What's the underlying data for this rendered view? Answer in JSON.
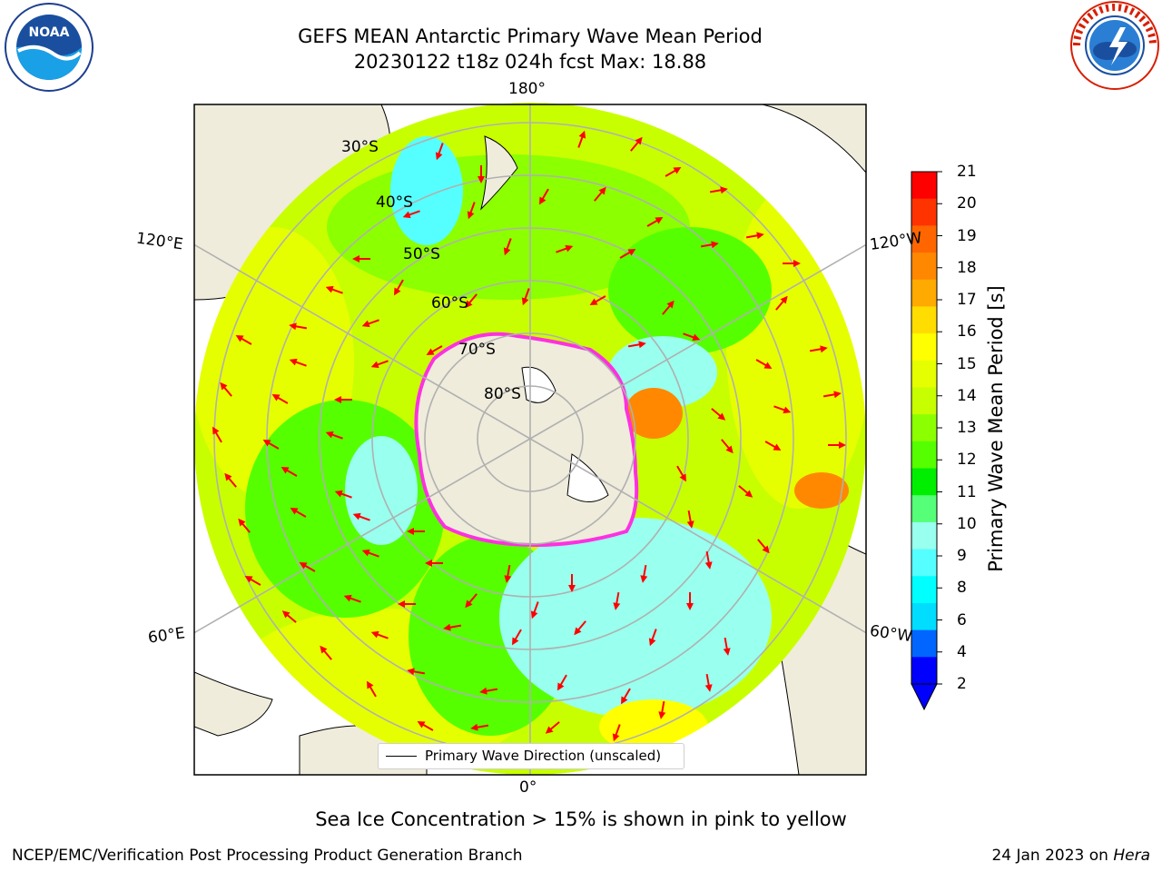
{
  "title": {
    "line1": "GEFS MEAN Antarctic Primary Wave Mean Period",
    "line2": "20230122 t18z 024h fcst   Max: 18.88"
  },
  "map": {
    "projection": "south-polar-stereographic",
    "longitude_labels": [
      "180°",
      "120°E",
      "120°W",
      "60°E",
      "60°W",
      "0°"
    ],
    "latitude_labels": [
      "30°S",
      "40°S",
      "50°S",
      "60°S",
      "70°S",
      "80°S"
    ],
    "colors": {
      "land": "#efecdc",
      "arrows": "#ff0000",
      "sea_ice_edge": "#ff30e0",
      "gridlines": "#b0b0b0"
    }
  },
  "colorbar": {
    "label": "Primary Wave Mean Period [s]",
    "ticks": [
      "21",
      "20",
      "19",
      "18",
      "17",
      "16",
      "15",
      "14",
      "13",
      "12",
      "11",
      "10",
      "9",
      "8",
      "6",
      "4",
      "2"
    ],
    "colors": [
      "#ff0000",
      "#ff3300",
      "#ff6600",
      "#ff8800",
      "#ffaa00",
      "#ffdd00",
      "#ffff00",
      "#e6ff00",
      "#c8ff00",
      "#8cff00",
      "#55ff00",
      "#00ee00",
      "#55ff77",
      "#99ffee",
      "#55ffff",
      "#00ffff",
      "#00ddff",
      "#0066ff",
      "#0000ff"
    ],
    "extend_color": "#0000ff"
  },
  "legend": {
    "entry": "Primary Wave Direction (unscaled)"
  },
  "note": "Sea Ice Concentration > 15% is shown in pink to yellow",
  "footer": {
    "left": "NCEP/EMC/Verification Post Processing Product Generation Branch",
    "date": "24 Jan 2023 on",
    "host": "Hera"
  },
  "logos": {
    "noaa": "noaa-logo",
    "nws": "national-weather-service-logo",
    "noaa_text": "NOAA",
    "nws_text": "NATIONAL WEATHER SERVICE"
  }
}
